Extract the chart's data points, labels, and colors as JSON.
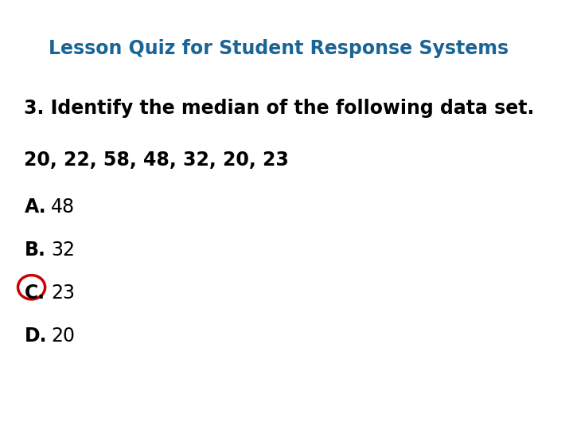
{
  "title": "Lesson Quiz for Student Response Systems",
  "title_color": "#1a6496",
  "question": "3. Identify the median of the following data set.",
  "data_line": "20, 22, 58, 48, 32, 20, 23",
  "options": [
    {
      "letter": "A.",
      "text": " 48",
      "circled": false
    },
    {
      "letter": "B.",
      "text": " 32",
      "circled": false
    },
    {
      "letter": "C.",
      "text": " 23",
      "circled": true
    },
    {
      "letter": "D.",
      "text": " 20",
      "circled": false
    }
  ],
  "bg_color": "#ffffff",
  "text_color": "#000000",
  "bold_color": "#000000",
  "circle_color": "#cc0000",
  "title_fontsize": 17,
  "question_fontsize": 17,
  "option_fontsize": 17
}
